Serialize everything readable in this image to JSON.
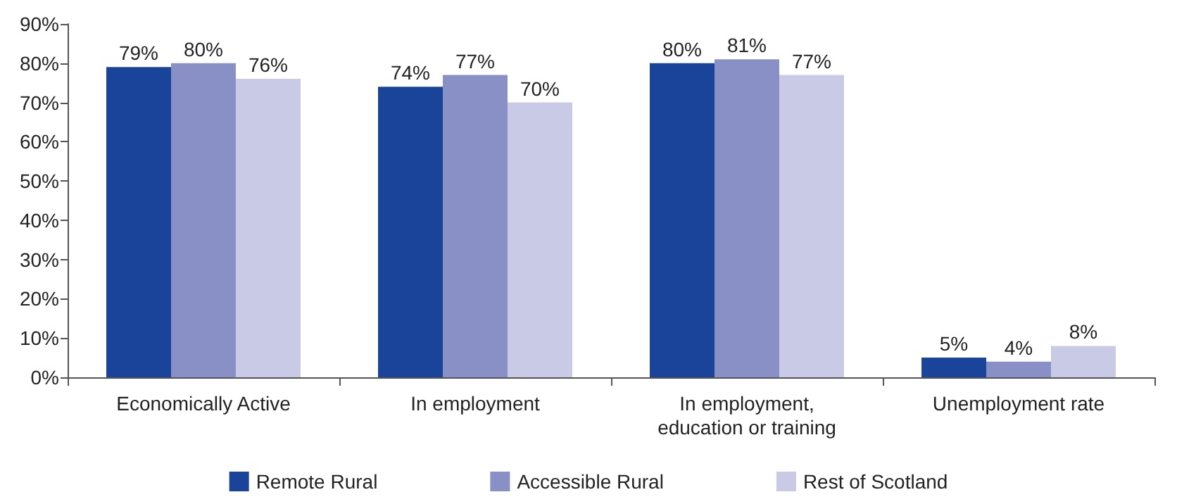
{
  "chart_data": {
    "type": "bar",
    "categories": [
      "Economically Active",
      "In employment",
      "In employment,\neducation or training",
      "Unemployment rate"
    ],
    "series": [
      {
        "name": "Remote Rural",
        "color": "#1a449a",
        "values": [
          79,
          74,
          80,
          5
        ],
        "value_labels": [
          "79%",
          "74%",
          "80%",
          "5%"
        ]
      },
      {
        "name": "Accessible Rural",
        "color": "#8890c6",
        "values": [
          80,
          77,
          81,
          4
        ],
        "value_labels": [
          "80%",
          "77%",
          "81%",
          "4%"
        ]
      },
      {
        "name": "Rest of Scotland",
        "color": "#c9cae6",
        "values": [
          76,
          70,
          77,
          8
        ],
        "value_labels": [
          "76%",
          "70%",
          "77%",
          "8%"
        ]
      }
    ],
    "ylim": [
      0,
      90
    ],
    "yticks": [
      {
        "value": 0,
        "label": "0%"
      },
      {
        "value": 10,
        "label": "10%"
      },
      {
        "value": 20,
        "label": "20%"
      },
      {
        "value": 30,
        "label": "30%"
      },
      {
        "value": 40,
        "label": "40%"
      },
      {
        "value": 50,
        "label": "50%"
      },
      {
        "value": 60,
        "label": "60%"
      },
      {
        "value": 70,
        "label": "70%"
      },
      {
        "value": 80,
        "label": "80%"
      },
      {
        "value": 90,
        "label": "90%"
      }
    ],
    "grid": false,
    "legend": "bottom"
  }
}
